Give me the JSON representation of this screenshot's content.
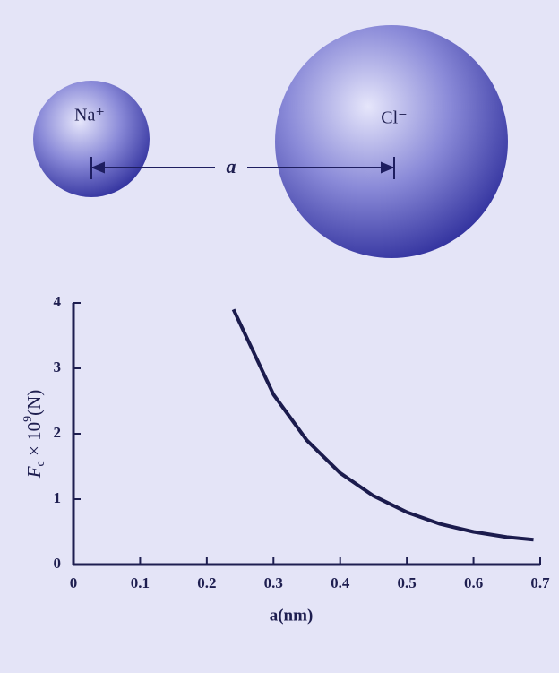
{
  "diagram": {
    "cation": "Na⁺",
    "anion": "Cl⁻",
    "separation": "a"
  },
  "chart_data": {
    "type": "line",
    "y_label": {
      "symbol": "F",
      "subscript": "c",
      "base": " × 10",
      "exponent": "9",
      "unit": "(N)"
    },
    "x_label": "a(nm)",
    "x": [
      0.24,
      0.3,
      0.35,
      0.4,
      0.45,
      0.5,
      0.55,
      0.6,
      0.65,
      0.69
    ],
    "series": [
      {
        "color": "#1b1b4d",
        "values": [
          3.9,
          2.6,
          1.9,
          1.4,
          1.05,
          0.8,
          0.62,
          0.5,
          0.42,
          0.38
        ]
      }
    ],
    "xlim": [
      0,
      0.7
    ],
    "xticks": [
      0,
      0.1,
      0.2,
      0.3,
      0.4,
      0.5,
      0.6,
      0.7
    ],
    "ylim": [
      0,
      4
    ],
    "yticks": [
      0,
      1,
      2,
      3,
      4
    ]
  }
}
